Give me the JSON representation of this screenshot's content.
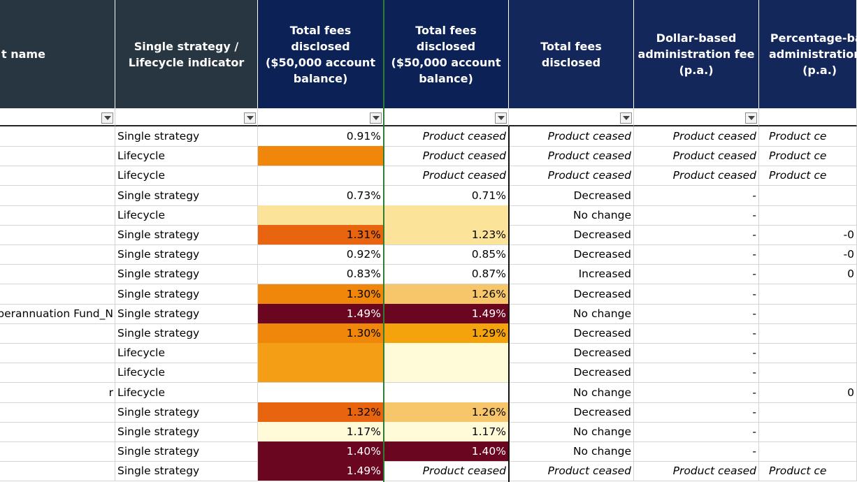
{
  "colors": {
    "header_dark": "#273640",
    "header_navy": "#0c2257",
    "header_navy2": "#13275a",
    "fill_orange": "#f0860a",
    "fill_dark_orange": "#e8640e",
    "fill_light_orange": "#f39e14",
    "fill_peach": "#f7c66b",
    "fill_pale_yellow": "#fbe39a",
    "fill_cream": "#fffbd9",
    "fill_maroon": "#6b0620",
    "fill_amber": "#f4a30c"
  },
  "headers": [
    "t name",
    "Single strategy /\nLifecycle indicator",
    "Total fees disclosed\n($50,000 account\nbalance)",
    "Total fees disclosed\n($50,000 account\nbalance)",
    "Total fees disclosed",
    "Dollar-based\nadministration fee\n(p.a.)",
    "Percentage-bas\nadministration f\n(p.a.)"
  ],
  "rows": [
    {
      "name": "",
      "indicator": "Single strategy",
      "fee1": "0.91%",
      "fee2": "Product ceased",
      "change": "Product ceased",
      "dollar_admin": "Product ceased",
      "pct_admin": "Product ce"
    },
    {
      "name": "",
      "indicator": "Lifecycle",
      "fee1": "",
      "fee2": "Product ceased",
      "change": "Product ceased",
      "dollar_admin": "Product ceased",
      "pct_admin": "Product ce"
    },
    {
      "name": "",
      "indicator": "Lifecycle",
      "fee1": "",
      "fee2": "Product ceased",
      "change": "Product ceased",
      "dollar_admin": "Product ceased",
      "pct_admin": "Product ce"
    },
    {
      "name": "",
      "indicator": "Single strategy",
      "fee1": "0.73%",
      "fee2": "0.71%",
      "change": "Decreased",
      "dollar_admin": "-",
      "pct_admin": ""
    },
    {
      "name": "",
      "indicator": "Lifecycle",
      "fee1": "",
      "fee2": "",
      "change": "No change",
      "dollar_admin": "-",
      "pct_admin": ""
    },
    {
      "name": "",
      "indicator": "Single strategy",
      "fee1": "1.31%",
      "fee2": "1.23%",
      "change": "Decreased",
      "dollar_admin": "-",
      "pct_admin": "-0"
    },
    {
      "name": "",
      "indicator": "Single strategy",
      "fee1": "0.92%",
      "fee2": "0.85%",
      "change": "Decreased",
      "dollar_admin": "-",
      "pct_admin": "-0"
    },
    {
      "name": "",
      "indicator": "Single strategy",
      "fee1": "0.83%",
      "fee2": "0.87%",
      "change": "Increased",
      "dollar_admin": "-",
      "pct_admin": "0"
    },
    {
      "name": "",
      "indicator": "Single strategy",
      "fee1": "1.30%",
      "fee2": "1.26%",
      "change": "Decreased",
      "dollar_admin": "-",
      "pct_admin": ""
    },
    {
      "name": "uperannuation Fund_N",
      "indicator": "Single strategy",
      "fee1": "1.49%",
      "fee2": "1.49%",
      "change": "No change",
      "dollar_admin": "-",
      "pct_admin": ""
    },
    {
      "name": "",
      "indicator": "Single strategy",
      "fee1": "1.30%",
      "fee2": "1.29%",
      "change": "Decreased",
      "dollar_admin": "-",
      "pct_admin": ""
    },
    {
      "name": "",
      "indicator": "Lifecycle",
      "fee1": "",
      "fee2": "",
      "change": "Decreased",
      "dollar_admin": "-",
      "pct_admin": ""
    },
    {
      "name": "",
      "indicator": "Lifecycle",
      "fee1": "",
      "fee2": "",
      "change": "Decreased",
      "dollar_admin": "-",
      "pct_admin": ""
    },
    {
      "name": "r",
      "indicator": "Lifecycle",
      "fee1": "",
      "fee2": "",
      "change": "No change",
      "dollar_admin": "-",
      "pct_admin": "0"
    },
    {
      "name": "",
      "indicator": "Single strategy",
      "fee1": "1.32%",
      "fee2": "1.26%",
      "change": "Decreased",
      "dollar_admin": "-",
      "pct_admin": ""
    },
    {
      "name": "",
      "indicator": "Single strategy",
      "fee1": "1.17%",
      "fee2": "1.17%",
      "change": "No change",
      "dollar_admin": "-",
      "pct_admin": ""
    },
    {
      "name": "",
      "indicator": "Single strategy",
      "fee1": "1.40%",
      "fee2": "1.40%",
      "change": "No change",
      "dollar_admin": "-",
      "pct_admin": ""
    },
    {
      "name": "",
      "indicator": "Single strategy",
      "fee1": "1.49%",
      "fee2": "Product ceased",
      "change": "Product ceased",
      "dollar_admin": "Product ceased",
      "pct_admin": "Product ce"
    }
  ]
}
